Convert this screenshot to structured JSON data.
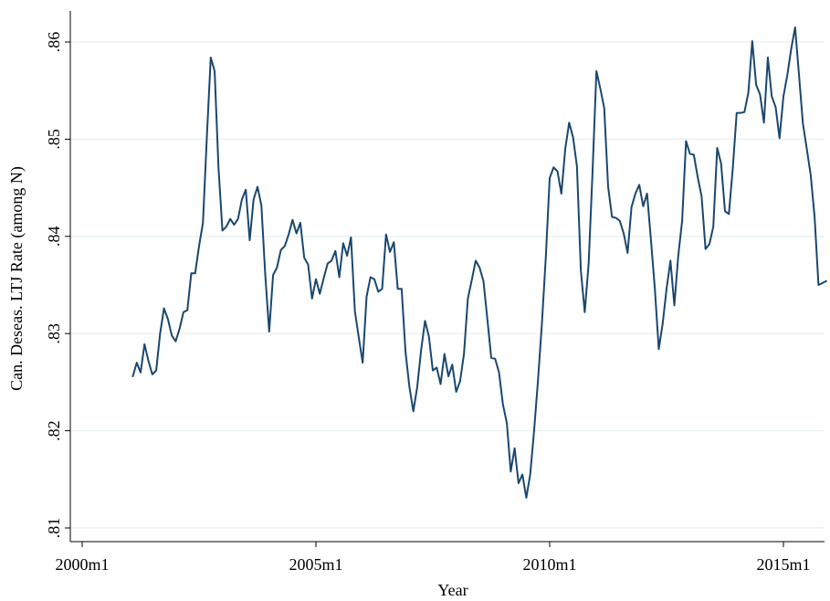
{
  "chart_data": {
    "type": "line",
    "xlabel": "Year",
    "ylabel": "Can. Deseas. LTJ Rate (among N)",
    "xlim": [
      "2000m1",
      "2015m12"
    ],
    "ylim": [
      0.81,
      0.863
    ],
    "x_ticks": [
      {
        "value": "2000m1",
        "label": "2000m1"
      },
      {
        "value": "2005m1",
        "label": "2005m1"
      },
      {
        "value": "2010m1",
        "label": "2010m1"
      },
      {
        "value": "2015m1",
        "label": "2015m1"
      }
    ],
    "y_ticks": [
      {
        "value": 0.81,
        "label": ".81"
      },
      {
        "value": 0.82,
        "label": ".82"
      },
      {
        "value": 0.83,
        "label": ".83"
      },
      {
        "value": 0.84,
        "label": ".84"
      },
      {
        "value": 0.85,
        "label": ".85"
      },
      {
        "value": 0.86,
        "label": ".86"
      }
    ],
    "grid": "horizontal",
    "line_color": "#1a476f",
    "series": [
      {
        "x": [
          "2001m2",
          "2001m3",
          "2001m4",
          "2001m5",
          "2001m6",
          "2001m7",
          "2001m8",
          "2001m9",
          "2001m10",
          "2001m11",
          "2001m12",
          "2002m1",
          "2002m2",
          "2002m3",
          "2002m4",
          "2002m5",
          "2002m6",
          "2002m7",
          "2002m8",
          "2002m9",
          "2002m10",
          "2002m11",
          "2002m12",
          "2003m1",
          "2003m2",
          "2003m3",
          "2003m4",
          "2003m5",
          "2003m6",
          "2003m7",
          "2003m8",
          "2003m9",
          "2003m10",
          "2003m11",
          "2003m12",
          "2004m1",
          "2004m2",
          "2004m3",
          "2004m4",
          "2004m5",
          "2004m6",
          "2004m7",
          "2004m8",
          "2004m9",
          "2004m10",
          "2004m11",
          "2004m12",
          "2005m1",
          "2005m2",
          "2005m3",
          "2005m4",
          "2005m5",
          "2005m6",
          "2005m7",
          "2005m8",
          "2005m9",
          "2005m10",
          "2005m11",
          "2005m12",
          "2006m1",
          "2006m2",
          "2006m3",
          "2006m4",
          "2006m5",
          "2006m6",
          "2006m7",
          "2006m8",
          "2006m9",
          "2006m10",
          "2006m11",
          "2006m12",
          "2007m1",
          "2007m2",
          "2007m3",
          "2007m4",
          "2007m5",
          "2007m6",
          "2007m7",
          "2007m8",
          "2007m9",
          "2007m10",
          "2007m11",
          "2007m12",
          "2008m1",
          "2008m2",
          "2008m3",
          "2008m4",
          "2008m5",
          "2008m6",
          "2008m7",
          "2008m8",
          "2008m9",
          "2008m10",
          "2008m11",
          "2008m12",
          "2009m1",
          "2009m2",
          "2009m3",
          "2009m4",
          "2009m5",
          "2009m6",
          "2009m7",
          "2009m8",
          "2009m9",
          "2009m10",
          "2009m11",
          "2009m12",
          "2010m1",
          "2010m2",
          "2010m3",
          "2010m4",
          "2010m5",
          "2010m6",
          "2010m7",
          "2010m8",
          "2010m9",
          "2010m10",
          "2010m11",
          "2010m12",
          "2011m1",
          "2011m2",
          "2011m3",
          "2011m4",
          "2011m5",
          "2011m6",
          "2011m7",
          "2011m8",
          "2011m9",
          "2011m10",
          "2011m11",
          "2011m12",
          "2012m1",
          "2012m2",
          "2012m3",
          "2012m4",
          "2012m5",
          "2012m6",
          "2012m7",
          "2012m8",
          "2012m9",
          "2012m10",
          "2012m11",
          "2012m12",
          "2013m1",
          "2013m2",
          "2013m3",
          "2013m4",
          "2013m5",
          "2013m6",
          "2013m7",
          "2013m8",
          "2013m9",
          "2013m10",
          "2013m11",
          "2013m12",
          "2014m1",
          "2014m2",
          "2014m3",
          "2014m4",
          "2014m5",
          "2014m6",
          "2014m7",
          "2014m8",
          "2014m9",
          "2014m10",
          "2014m11",
          "2014m12",
          "2015m1",
          "2015m2",
          "2015m3",
          "2015m4",
          "2015m5",
          "2015m6",
          "2015m7",
          "2015m8",
          "2015m9",
          "2015m10",
          "2015m11",
          "2015m12"
        ],
        "y": [
          0.8256,
          0.827,
          0.826,
          0.8289,
          0.8272,
          0.8258,
          0.8262,
          0.83,
          0.8326,
          0.8315,
          0.8298,
          0.8292,
          0.8305,
          0.8322,
          0.8324,
          0.8362,
          0.8362,
          0.839,
          0.8414,
          0.8502,
          0.8584,
          0.857,
          0.847,
          0.8406,
          0.841,
          0.8418,
          0.8412,
          0.8418,
          0.8438,
          0.8448,
          0.8396,
          0.8438,
          0.8451,
          0.8432,
          0.836,
          0.8302,
          0.836,
          0.8368,
          0.8386,
          0.839,
          0.8402,
          0.8417,
          0.8403,
          0.8414,
          0.8378,
          0.8371,
          0.8336,
          0.8356,
          0.8341,
          0.8357,
          0.8372,
          0.8375,
          0.8385,
          0.8358,
          0.8393,
          0.838,
          0.8399,
          0.8323,
          0.8296,
          0.827,
          0.8338,
          0.8358,
          0.8356,
          0.8343,
          0.8346,
          0.8402,
          0.8384,
          0.8394,
          0.8346,
          0.8346,
          0.8281,
          0.8245,
          0.822,
          0.8245,
          0.8283,
          0.8313,
          0.8297,
          0.8262,
          0.8265,
          0.8248,
          0.8279,
          0.8256,
          0.8268,
          0.824,
          0.8251,
          0.8279,
          0.8336,
          0.8355,
          0.8375,
          0.8368,
          0.8354,
          0.8315,
          0.8275,
          0.8274,
          0.826,
          0.8227,
          0.8208,
          0.8158,
          0.8182,
          0.8146,
          0.8155,
          0.8131,
          0.8155,
          0.82,
          0.8252,
          0.831,
          0.8378,
          0.846,
          0.8471,
          0.8467,
          0.8444,
          0.849,
          0.8517,
          0.8502,
          0.8472,
          0.8365,
          0.8322,
          0.8372,
          0.8466,
          0.857,
          0.8552,
          0.8532,
          0.8451,
          0.842,
          0.8419,
          0.8416,
          0.8403,
          0.8383,
          0.843,
          0.8444,
          0.8453,
          0.8431,
          0.8444,
          0.8396,
          0.8346,
          0.8284,
          0.831,
          0.8346,
          0.8375,
          0.8329,
          0.838,
          0.8416,
          0.8498,
          0.8485,
          0.8484,
          0.8461,
          0.8441,
          0.8387,
          0.8392,
          0.841,
          0.8491,
          0.8475,
          0.8426,
          0.8423,
          0.847,
          0.8527,
          0.8527,
          0.8528,
          0.8548,
          0.8601,
          0.8556,
          0.8546,
          0.8517,
          0.8584,
          0.8544,
          0.8533,
          0.8501,
          0.8544,
          0.8566,
          0.8593,
          0.8615,
          0.8566,
          0.8516,
          0.849,
          0.8463,
          0.842,
          0.835,
          0.8352,
          0.8354
        ]
      }
    ]
  }
}
